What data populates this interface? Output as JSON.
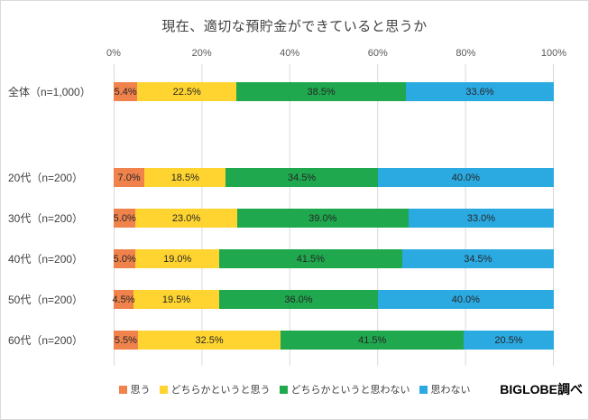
{
  "source_label": "BIGLOBE調べ",
  "chart_data": {
    "type": "bar",
    "stacked": true,
    "orientation": "horizontal",
    "title": "現在、適切な預貯金ができていると思うか",
    "x_ticks": [
      "0%",
      "20%",
      "40%",
      "60%",
      "80%",
      "100%"
    ],
    "xlim": [
      0,
      100
    ],
    "grid": true,
    "legend_position": "bottom",
    "value_suffix": "%",
    "categories": [
      "全体（n=1,000）",
      "20代（n=200）",
      "30代（n=200）",
      "40代（n=200）",
      "50代（n=200）",
      "60代（n=200）"
    ],
    "series": [
      {
        "name": "思う",
        "color": "#F0824C",
        "values": [
          5.4,
          7.0,
          5.0,
          5.0,
          4.5,
          5.5
        ]
      },
      {
        "name": "どちらかというと思う",
        "color": "#FFD430",
        "values": [
          22.5,
          18.5,
          23.0,
          19.0,
          19.5,
          32.5
        ]
      },
      {
        "name": "どちらかというと思わない",
        "color": "#1FA84D",
        "values": [
          38.5,
          34.5,
          39.0,
          41.5,
          36.0,
          41.5
        ]
      },
      {
        "name": "思わない",
        "color": "#2BAAE2",
        "values": [
          33.6,
          40.0,
          33.0,
          34.5,
          40.0,
          20.5
        ]
      }
    ]
  }
}
